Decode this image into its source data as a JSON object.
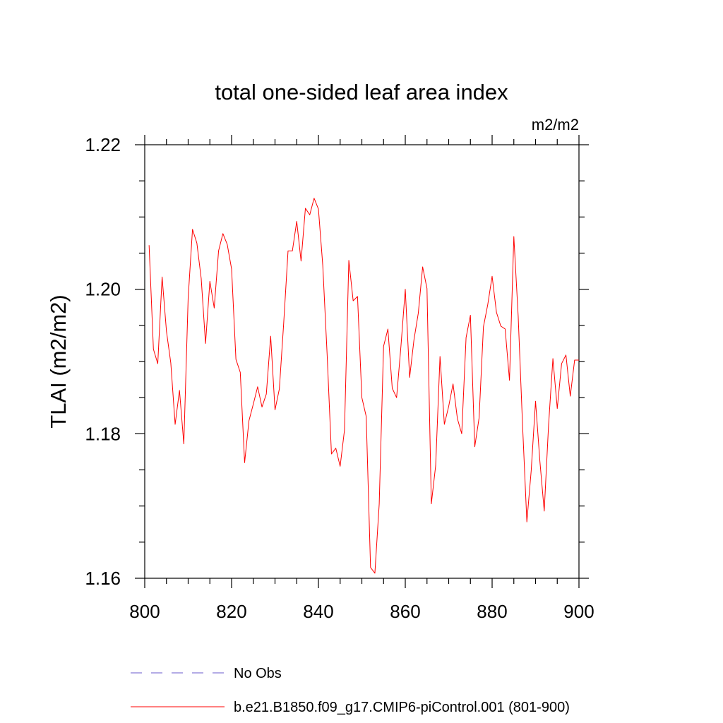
{
  "chart_data": {
    "type": "line",
    "title": "total one-sided leaf area index",
    "units": "m2/m2",
    "ylabel": "TLAI  (m2/m2)",
    "xlabel": "",
    "xlim": [
      800,
      900
    ],
    "ylim": [
      1.16,
      1.22
    ],
    "x_ticks": [
      800,
      820,
      840,
      860,
      880,
      900
    ],
    "x_tick_labels": [
      "800",
      "820",
      "840",
      "860",
      "880",
      "900"
    ],
    "y_ticks": [
      1.16,
      1.18,
      1.2,
      1.22
    ],
    "y_tick_labels": [
      "1.16",
      "1.18",
      "1.20",
      "1.22"
    ],
    "grid": false,
    "legend_position": "bottom",
    "legend": [
      {
        "label": "No Obs",
        "color": "#6a5acd",
        "dash": "dashed"
      },
      {
        "label": "b.e21.B1850.f09_g17.CMIP6-piControl.001 (801-900)",
        "color": "#ff0000",
        "dash": "solid"
      }
    ],
    "series": [
      {
        "name": "b.e21.B1850.f09_g17.CMIP6-piControl.001 (801-900)",
        "color": "#ff0000",
        "x": [
          801,
          802,
          803,
          804,
          805,
          806,
          807,
          808,
          809,
          810,
          811,
          812,
          813,
          814,
          815,
          816,
          817,
          818,
          819,
          820,
          821,
          822,
          823,
          824,
          825,
          826,
          827,
          828,
          829,
          830,
          831,
          832,
          833,
          834,
          835,
          836,
          837,
          838,
          839,
          840,
          841,
          842,
          843,
          844,
          845,
          846,
          847,
          848,
          849,
          850,
          851,
          852,
          853,
          854,
          855,
          856,
          857,
          858,
          859,
          860,
          861,
          862,
          863,
          864,
          865,
          866,
          867,
          868,
          869,
          870,
          871,
          872,
          873,
          874,
          875,
          876,
          877,
          878,
          879,
          880,
          881,
          882,
          883,
          884,
          885,
          886,
          887,
          888,
          889,
          890,
          891,
          892,
          893,
          894,
          895,
          896,
          897,
          898,
          899,
          900
        ],
        "values": [
          1.2061,
          1.1917,
          1.1897,
          1.2017,
          1.1942,
          1.1898,
          1.1813,
          1.186,
          1.1786,
          1.1988,
          1.2083,
          1.2064,
          1.2015,
          1.1925,
          1.2011,
          1.1974,
          1.2053,
          1.2077,
          1.2062,
          1.2028,
          1.1903,
          1.1885,
          1.176,
          1.1818,
          1.1841,
          1.1865,
          1.1837,
          1.1855,
          1.1935,
          1.1833,
          1.1862,
          1.1953,
          1.2053,
          1.2053,
          1.2094,
          1.2039,
          1.2112,
          1.2103,
          1.2126,
          1.2111,
          1.2033,
          1.191,
          1.1772,
          1.178,
          1.1755,
          1.1805,
          1.204,
          1.1984,
          1.199,
          1.185,
          1.1824,
          1.1615,
          1.1607,
          1.1703,
          1.1921,
          1.1945,
          1.1863,
          1.185,
          1.1921,
          1.2,
          1.1878,
          1.193,
          1.1967,
          1.2031,
          1.2001,
          1.1703,
          1.1756,
          1.1907,
          1.1813,
          1.1838,
          1.1869,
          1.1821,
          1.18,
          1.1933,
          1.1964,
          1.1782,
          1.1822,
          1.1948,
          1.1979,
          1.2018,
          1.1968,
          1.1949,
          1.1945,
          1.1874,
          1.2073,
          1.1963,
          1.1813,
          1.1678,
          1.1749,
          1.1845,
          1.1762,
          1.1693,
          1.1812,
          1.1904,
          1.1835,
          1.1897,
          1.1909,
          1.1852,
          1.1902,
          1.1902
        ]
      }
    ]
  }
}
